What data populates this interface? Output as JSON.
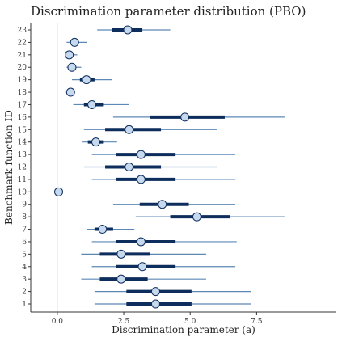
{
  "chart_data": {
    "type": "interval",
    "title": "Discrimination parameter distribution (PBO)",
    "xlabel": "Discrimination parameter (a)",
    "ylabel": "Benchmark function ID",
    "xlim": [
      -1.0,
      10.5
    ],
    "x_ticks": [
      0.0,
      2.5,
      5.0,
      7.5
    ],
    "x_tick_labels": [
      "0.0",
      "2.5",
      "5.0",
      "7.5"
    ],
    "reference_line_x": 0.0,
    "grid": false,
    "colors": {
      "thin_interval": "#5b88b5",
      "thick_interval": "#0d2d5c",
      "point_fill": "#c6d9ee",
      "point_stroke": "#0d2d5c",
      "reference_line": "#d8d8d8",
      "axis": "#333333"
    },
    "series": [
      {
        "id": "1",
        "point": 3.7,
        "inner": [
          2.6,
          5.05
        ],
        "outer": [
          1.4,
          7.3
        ]
      },
      {
        "id": "2",
        "point": 3.7,
        "inner": [
          2.6,
          5.05
        ],
        "outer": [
          1.4,
          7.3
        ]
      },
      {
        "id": "3",
        "point": 2.4,
        "inner": [
          1.6,
          3.4
        ],
        "outer": [
          0.9,
          5.6
        ]
      },
      {
        "id": "4",
        "point": 3.2,
        "inner": [
          2.2,
          4.45
        ],
        "outer": [
          1.3,
          6.7
        ]
      },
      {
        "id": "5",
        "point": 2.4,
        "inner": [
          1.6,
          3.5
        ],
        "outer": [
          0.9,
          5.6
        ]
      },
      {
        "id": "6",
        "point": 3.15,
        "inner": [
          2.2,
          4.45
        ],
        "outer": [
          1.3,
          6.75
        ]
      },
      {
        "id": "7",
        "point": 1.7,
        "inner": [
          1.4,
          2.1
        ],
        "outer": [
          1.1,
          2.9
        ]
      },
      {
        "id": "8",
        "point": 5.25,
        "inner": [
          4.25,
          6.5
        ],
        "outer": [
          2.95,
          8.55
        ]
      },
      {
        "id": "9",
        "point": 3.95,
        "inner": [
          3.1,
          4.95
        ],
        "outer": [
          2.1,
          6.7
        ]
      },
      {
        "id": "10",
        "point": 0.05,
        "inner": [
          0.05,
          0.05
        ],
        "outer": [
          0.05,
          0.05
        ]
      },
      {
        "id": "11",
        "point": 3.15,
        "inner": [
          2.2,
          4.45
        ],
        "outer": [
          1.3,
          6.7
        ]
      },
      {
        "id": "12",
        "point": 2.7,
        "inner": [
          1.8,
          3.9
        ],
        "outer": [
          1.0,
          6.0
        ]
      },
      {
        "id": "13",
        "point": 3.15,
        "inner": [
          2.2,
          4.45
        ],
        "outer": [
          1.3,
          6.7
        ]
      },
      {
        "id": "14",
        "point": 1.45,
        "inner": [
          1.15,
          1.75
        ],
        "outer": [
          0.95,
          2.25
        ]
      },
      {
        "id": "15",
        "point": 2.7,
        "inner": [
          1.8,
          3.9
        ],
        "outer": [
          1.0,
          6.0
        ]
      },
      {
        "id": "16",
        "point": 4.8,
        "inner": [
          3.5,
          6.3
        ],
        "outer": [
          2.1,
          8.55
        ]
      },
      {
        "id": "17",
        "point": 1.3,
        "inner": [
          1.0,
          1.75
        ],
        "outer": [
          0.6,
          2.7
        ]
      },
      {
        "id": "18",
        "point": 0.5,
        "inner": [
          0.45,
          0.55
        ],
        "outer": [
          0.4,
          0.65
        ]
      },
      {
        "id": "19",
        "point": 1.1,
        "inner": [
          0.85,
          1.4
        ],
        "outer": [
          0.55,
          2.05
        ]
      },
      {
        "id": "20",
        "point": 0.55,
        "inner": [
          0.45,
          0.65
        ],
        "outer": [
          0.35,
          0.9
        ]
      },
      {
        "id": "21",
        "point": 0.45,
        "inner": [
          0.4,
          0.55
        ],
        "outer": [
          0.35,
          0.75
        ]
      },
      {
        "id": "22",
        "point": 0.65,
        "inner": [
          0.5,
          0.8
        ],
        "outer": [
          0.35,
          1.1
        ]
      },
      {
        "id": "23",
        "point": 2.65,
        "inner": [
          2.05,
          3.2
        ],
        "outer": [
          1.5,
          4.25
        ]
      }
    ]
  }
}
